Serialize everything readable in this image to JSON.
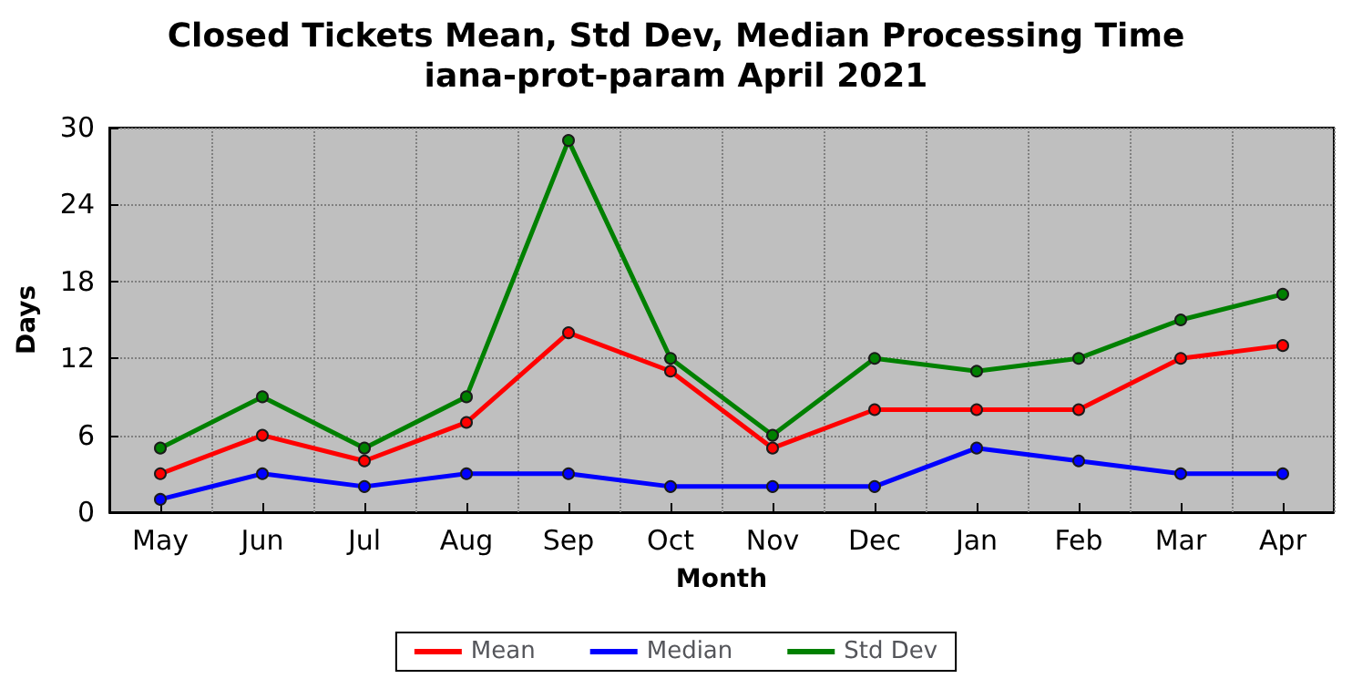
{
  "chart_data": {
    "type": "line",
    "title": "Closed Tickets Mean, Std Dev, Median Processing Time\niana-prot-param April 2021",
    "xlabel": "Month",
    "ylabel": "Days",
    "categories": [
      "May",
      "Jun",
      "Jul",
      "Aug",
      "Sep",
      "Oct",
      "Nov",
      "Dec",
      "Jan",
      "Feb",
      "Mar",
      "Apr"
    ],
    "series": [
      {
        "name": "Mean",
        "color": "#ff0000",
        "values": [
          3,
          6,
          4,
          7,
          14,
          11,
          5,
          8,
          8,
          8,
          12,
          13
        ]
      },
      {
        "name": "Median",
        "color": "#0000ff",
        "values": [
          1,
          3,
          2,
          3,
          3,
          2,
          2,
          2,
          5,
          4,
          3,
          3
        ]
      },
      {
        "name": "Std Dev",
        "color": "#008000",
        "values": [
          5,
          9,
          5,
          9,
          29,
          12,
          6,
          12,
          11,
          12,
          15,
          17
        ]
      }
    ],
    "ylim": [
      0,
      30
    ],
    "yticks": [
      0,
      6,
      12,
      18,
      24,
      30
    ],
    "grid": true,
    "legend": "bottom",
    "marker": "circle",
    "line_style": "solid"
  }
}
